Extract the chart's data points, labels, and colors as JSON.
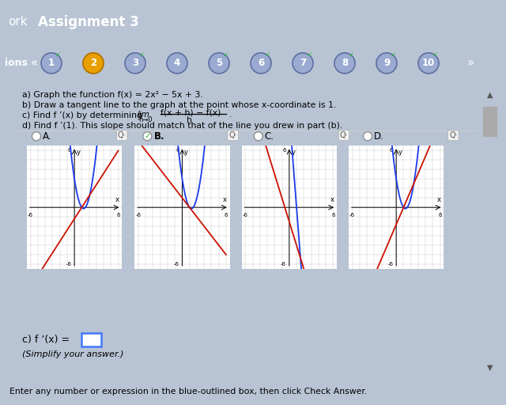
{
  "header_bg": "#2e2e2e",
  "nav_bg": "#8090b8",
  "content_bg": "#ffffff",
  "outer_bg": "#b8c4d4",
  "footer_bg": "#e4e4e4",
  "parabola_color": "#1a3aee",
  "tangent_color": "#cc1100",
  "grid_color": "#cccccc",
  "nav_circle_normal": "#9aaad0",
  "nav_circle_selected": "#e8a000",
  "nav_circle_border": "#6070a0",
  "nav_checked": [
    true,
    false,
    true,
    false,
    true,
    true,
    true,
    true,
    true,
    true
  ],
  "nav_selected_idx": 1,
  "choices": [
    "A.",
    "B.",
    "C.",
    "D."
  ],
  "choice_selected": 1,
  "footer_text": "Enter any number or expression in the blue-outlined box, then click Check Answer."
}
